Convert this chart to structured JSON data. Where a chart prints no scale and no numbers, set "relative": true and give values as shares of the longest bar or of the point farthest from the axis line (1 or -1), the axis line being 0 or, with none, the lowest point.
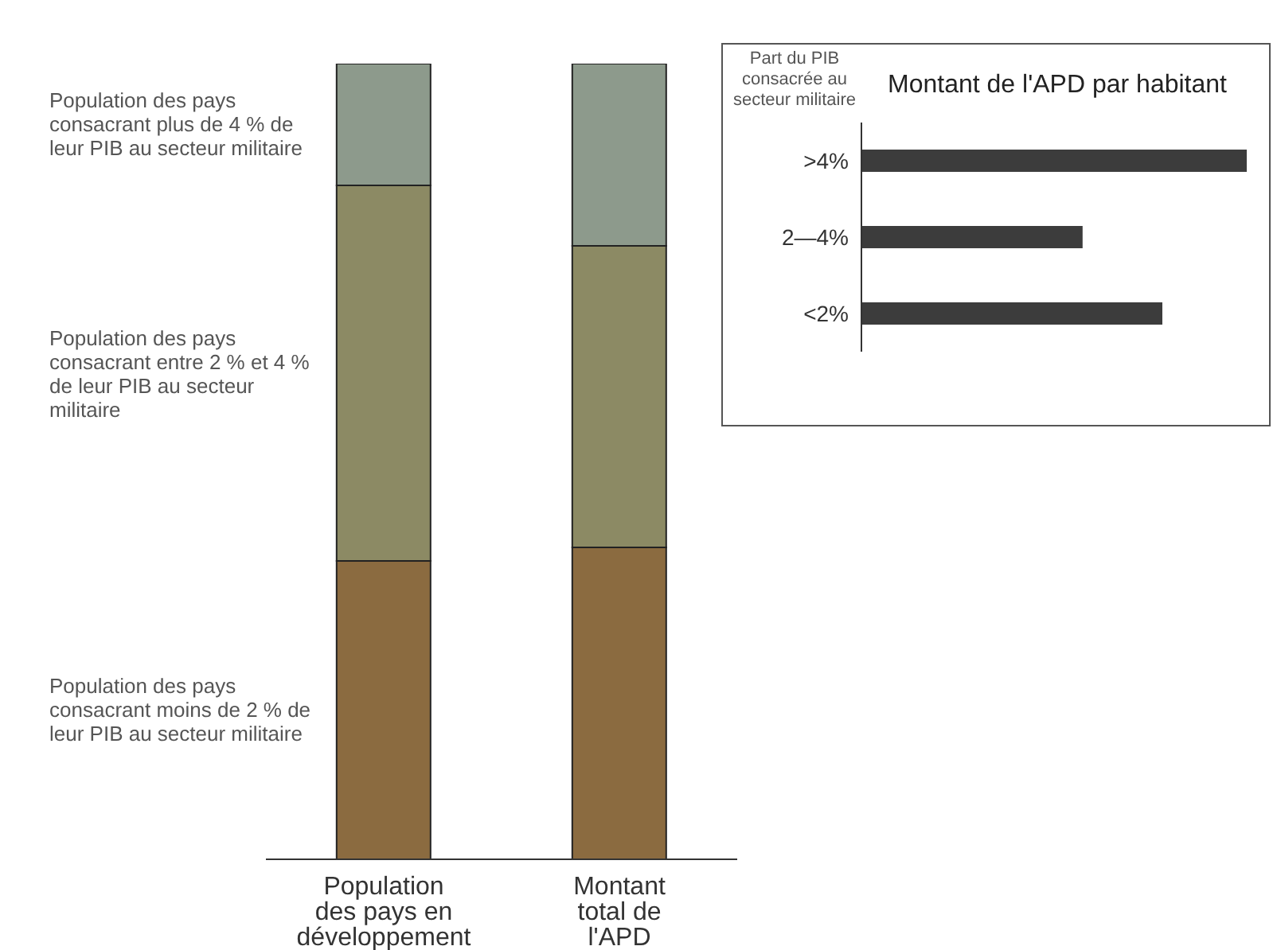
{
  "chart_data": [
    {
      "type": "bar",
      "stacked": true,
      "relative": true,
      "categories": [
        "Population des pays en développement",
        "Montant total de l'APD"
      ],
      "series": [
        {
          "name": "Population des pays consacrant moins de 2 % de leur PIB au secteur militaire",
          "color": "#8b6b40",
          "values": [
            0.375,
            0.392
          ]
        },
        {
          "name": "Population des pays consacrant entre 2 % et 4 % de leur PIB au secteur militaire",
          "color": "#8c8a64",
          "values": [
            0.472,
            0.379
          ]
        },
        {
          "name": "Population des pays consacrant plus de 4 % de leur PIB au secteur militaire",
          "color": "#8d9a8c",
          "values": [
            0.153,
            0.229
          ]
        }
      ]
    },
    {
      "type": "bar",
      "orientation": "horizontal",
      "relative": true,
      "title": "Montant de l'APD par habitant",
      "ylabel": "Part du PIB consacrée au secteur militaire",
      "categories": [
        ">4%",
        "2—4%",
        "<2%"
      ],
      "values": [
        1,
        0.574,
        0.781
      ],
      "color": "#3c3c3c"
    }
  ]
}
